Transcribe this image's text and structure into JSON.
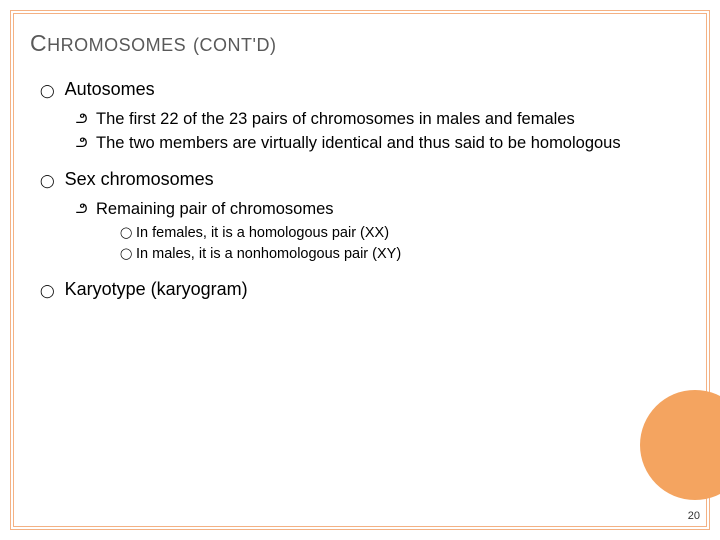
{
  "colors": {
    "border": "#f4b183",
    "circle": "#f4a460",
    "title": "#595959",
    "text": "#000000",
    "background": "#ffffff"
  },
  "title": {
    "word1_cap": "C",
    "word1_rest": "HROMOSOMES",
    "paren_open": "(",
    "word2_cap": "CONT",
    "apos": "'",
    "word2_cap2": "D",
    "paren_close": ")"
  },
  "items": [
    {
      "label": "Autosomes",
      "sub": [
        {
          "text": "The first 22 of the 23 pairs of chromosomes in males and females"
        },
        {
          "text": "The two members are virtually identical and thus said to be homologous"
        }
      ]
    },
    {
      "label": "Sex chromosomes",
      "sub": [
        {
          "text": "Remaining pair of chromosomes",
          "subsub": [
            {
              "text": "In females, it is a homologous pair (XX)"
            },
            {
              "text": "In males, it is a nonhomologous pair (XY)"
            }
          ]
        }
      ]
    },
    {
      "label": "Karyotype (karyogram)",
      "sub": []
    }
  ],
  "bullets": {
    "l1": "⬤",
    "l2": "✐",
    "l3": "⬤"
  },
  "page_number": "20"
}
